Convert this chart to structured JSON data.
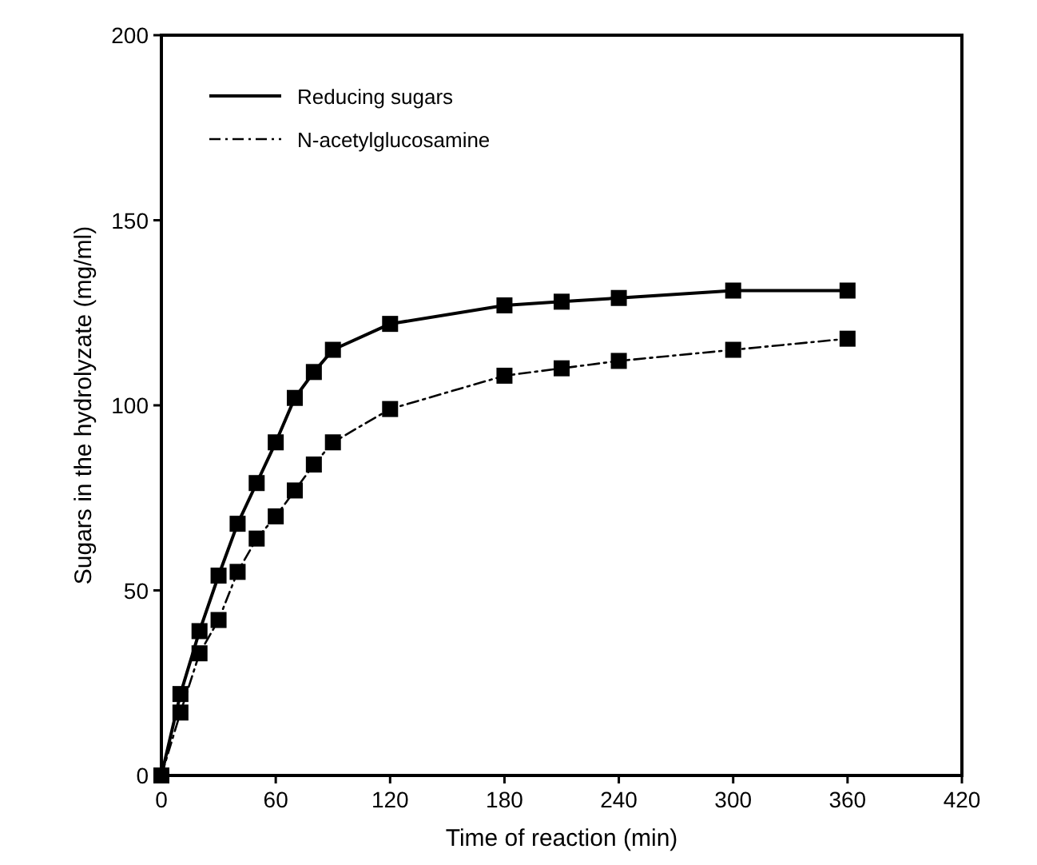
{
  "chart_data": {
    "type": "line",
    "xlabel": "Time of reaction (min)",
    "ylabel": "Sugars in the hydrolyzate (mg/ml)",
    "x": [
      0,
      10,
      20,
      30,
      40,
      50,
      60,
      70,
      80,
      90,
      120,
      180,
      210,
      240,
      300,
      360
    ],
    "series": [
      {
        "name": "Reducing sugars",
        "color": "#000000",
        "line_style": "solid",
        "values": [
          0,
          22,
          39,
          54,
          68,
          79,
          90,
          102,
          109,
          115,
          122,
          127,
          128,
          129,
          131,
          131
        ]
      },
      {
        "name": "N-acetylglucosamine",
        "color": "#000000",
        "line_style": "dashed",
        "values": [
          0,
          17,
          33,
          42,
          55,
          64,
          70,
          77,
          84,
          90,
          99,
          108,
          110,
          112,
          115,
          118
        ]
      }
    ],
    "xlim": [
      0,
      420
    ],
    "xticks": [
      0,
      60,
      120,
      180,
      240,
      300,
      360,
      420
    ],
    "ylim": [
      0,
      200
    ],
    "yticks": [
      0,
      50,
      100,
      150,
      200
    ],
    "grid": false,
    "legend": "top left",
    "marker": "square"
  }
}
